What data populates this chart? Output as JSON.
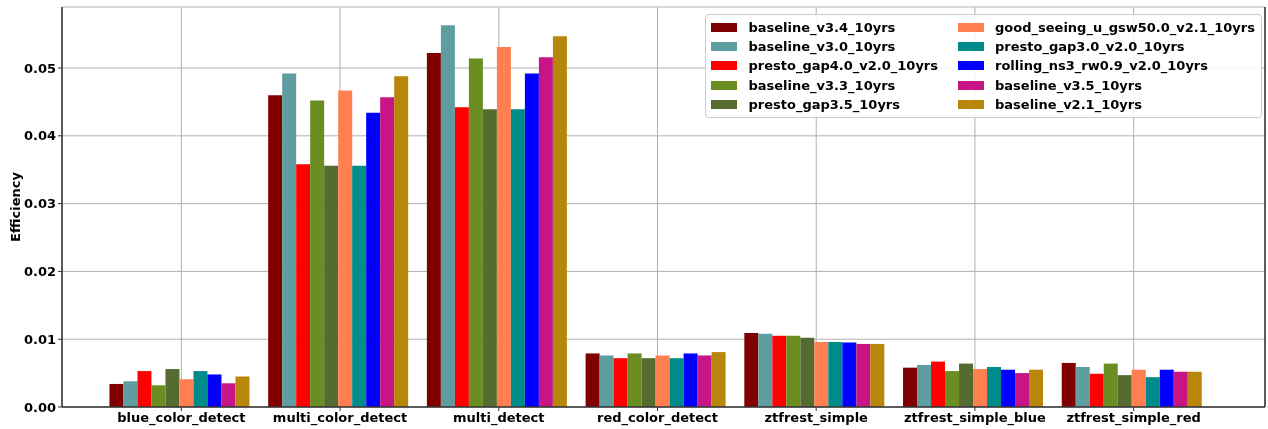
{
  "chart_data": {
    "type": "bar",
    "ylabel": "Efficiency",
    "categories": [
      "blue_color_detect",
      "multi_color_detect",
      "multi_detect",
      "red_color_detect",
      "ztfrest_simple",
      "ztfrest_simple_blue",
      "ztfrest_simple_red"
    ],
    "series": [
      {
        "name": "baseline_v3.4_10yrs",
        "color": "#800000",
        "values": [
          0.0034,
          0.046,
          0.0522,
          0.0079,
          0.0109,
          0.0058,
          0.0065
        ]
      },
      {
        "name": "baseline_v3.0_10yrs",
        "color": "#5f9ea0",
        "values": [
          0.0038,
          0.0492,
          0.0563,
          0.0076,
          0.0108,
          0.0062,
          0.0059
        ]
      },
      {
        "name": "presto_gap4.0_v2.0_10yrs",
        "color": "#ff0000",
        "values": [
          0.0053,
          0.0358,
          0.0442,
          0.0072,
          0.0105,
          0.0067,
          0.0049
        ]
      },
      {
        "name": "baseline_v3.3_10yrs",
        "color": "#6b8e23",
        "values": [
          0.0032,
          0.0452,
          0.0514,
          0.0079,
          0.0105,
          0.0053,
          0.0064
        ]
      },
      {
        "name": "presto_gap3.5_10yrs",
        "color": "#556b2f",
        "values": [
          0.0056,
          0.0356,
          0.0439,
          0.0072,
          0.0102,
          0.0064,
          0.0047
        ]
      },
      {
        "name": "good_seeing_u_gsw50.0_v2.1_10yrs",
        "color": "#ff7f50",
        "values": [
          0.0041,
          0.0467,
          0.0531,
          0.0076,
          0.0096,
          0.0056,
          0.0055
        ]
      },
      {
        "name": "presto_gap3.0_v2.0_10yrs",
        "color": "#008b8b",
        "values": [
          0.0053,
          0.0356,
          0.0439,
          0.0072,
          0.0096,
          0.0059,
          0.0044
        ]
      },
      {
        "name": "rolling_ns3_rw0.9_v2.0_10yrs",
        "color": "#0000ff",
        "values": [
          0.0048,
          0.0434,
          0.0492,
          0.0079,
          0.0095,
          0.0055,
          0.0055
        ]
      },
      {
        "name": "baseline_v3.5_10yrs",
        "color": "#c71585",
        "values": [
          0.0035,
          0.0457,
          0.0516,
          0.0076,
          0.0093,
          0.005,
          0.0052
        ]
      },
      {
        "name": "baseline_v2.1_10yrs",
        "color": "#b8860b",
        "values": [
          0.0045,
          0.0488,
          0.0547,
          0.0081,
          0.0093,
          0.0055,
          0.0052
        ]
      }
    ],
    "ylim": [
      0,
      0.059
    ],
    "yticks": [
      {
        "value": 0,
        "label": "0.00"
      },
      0.01,
      0.02,
      0.03,
      0.04,
      0.05
    ],
    "grid": true,
    "legend": "top right"
  }
}
